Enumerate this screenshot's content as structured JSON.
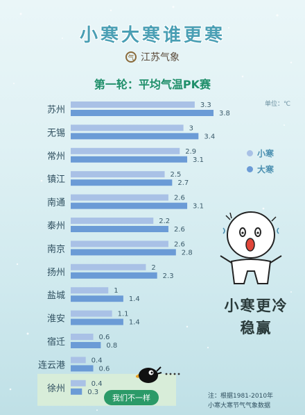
{
  "header": {
    "title": "小寒大寒谁更寒",
    "brand": "江苏气象",
    "subtitle": "第一轮：平均气温PK赛",
    "unit": "单位：℃"
  },
  "legend": [
    {
      "label": "小寒",
      "color": "#a9c1e6"
    },
    {
      "label": "大寒",
      "color": "#6b9bd6"
    }
  ],
  "chart_data": {
    "type": "bar",
    "orientation": "horizontal",
    "categories": [
      "苏州",
      "无锡",
      "常州",
      "镇江",
      "南通",
      "泰州",
      "南京",
      "扬州",
      "盐城",
      "淮安",
      "宿迁",
      "连云港",
      "徐州"
    ],
    "series": [
      {
        "name": "小寒",
        "values": [
          3.3,
          3,
          2.9,
          2.5,
          2.6,
          2.2,
          2.6,
          2,
          1,
          1.1,
          0.6,
          0.4,
          0.4
        ]
      },
      {
        "name": "大寒",
        "values": [
          3.8,
          3.4,
          3.1,
          2.7,
          3.1,
          2.6,
          2.8,
          2.3,
          1.4,
          1.4,
          0.8,
          0.6,
          0.3
        ]
      }
    ],
    "value_labels": {
      "小寒": [
        "3.3",
        "3",
        "2.9",
        "2.5",
        "2.6",
        "2.2",
        "2.6",
        "2",
        "1",
        "1.1",
        "0.6",
        "0.4",
        "0.4"
      ],
      "大寒": [
        "3.8",
        "3.4",
        "3.1",
        "2.7",
        "3.1",
        "2.6",
        "2.8",
        "2.3",
        "1.4",
        "1.4",
        "0.8",
        "0.6",
        "0.3"
      ]
    },
    "xlim": [
      0,
      3.8
    ],
    "grid": false,
    "legend_position": "right"
  },
  "callout": {
    "line1": "小寒更冷",
    "line2": "稳赢"
  },
  "badge": "我们不一样",
  "footnote": {
    "line1": "注：根据1981-2010年",
    "line2": "小寒大寒节气气象数据"
  }
}
